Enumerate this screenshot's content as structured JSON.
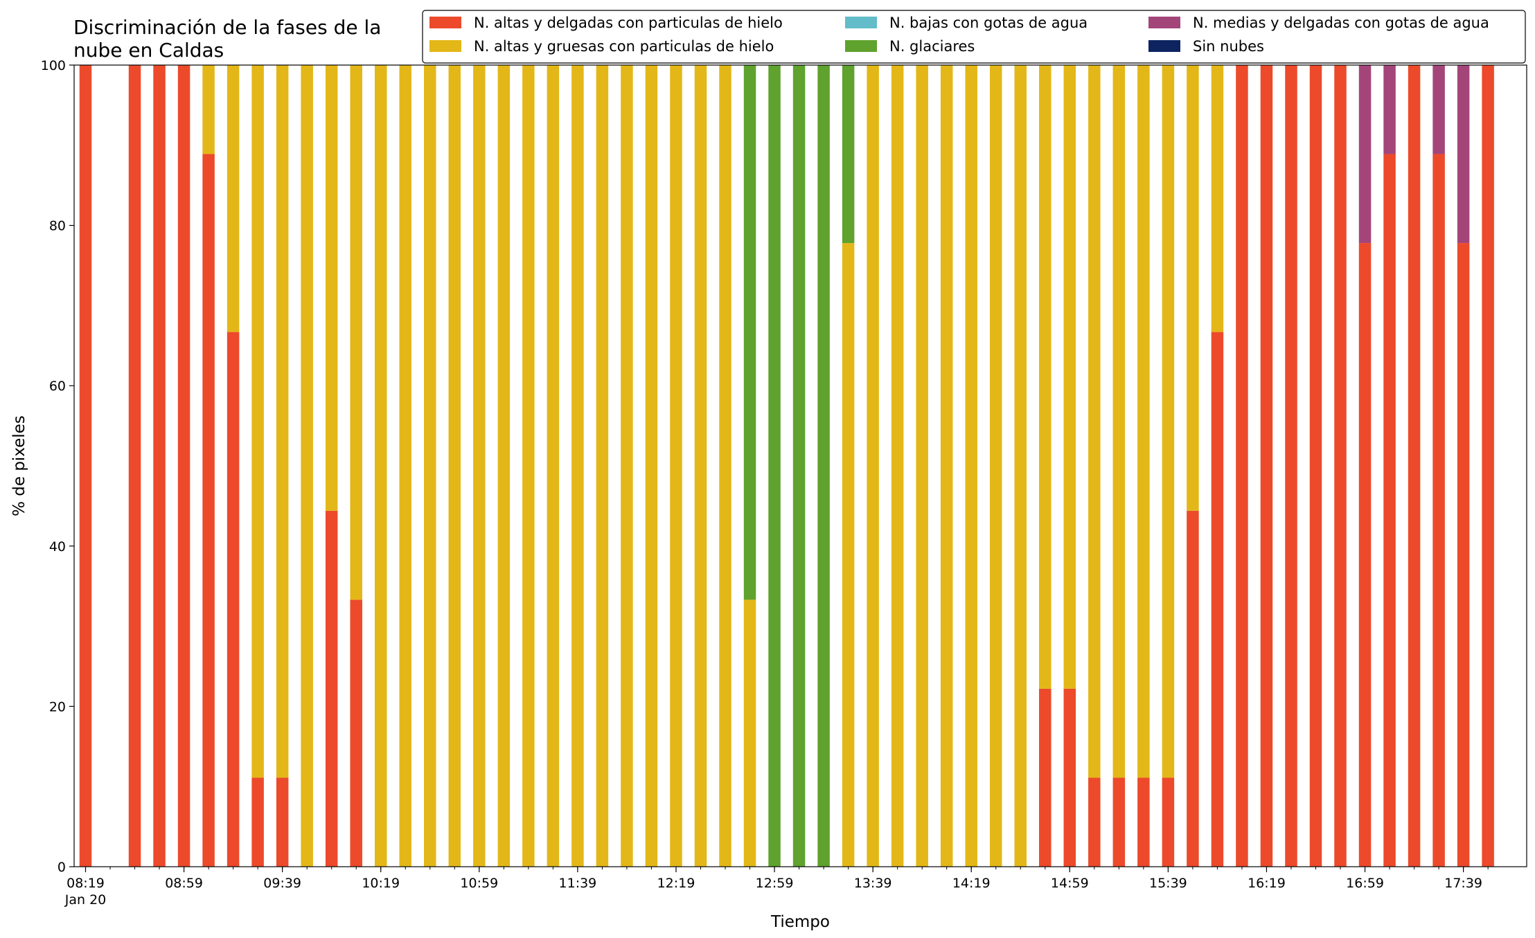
{
  "chart_data": {
    "type": "bar",
    "stacked": true,
    "title": "Discriminación de la fases de la\nnube en Caldas",
    "xlabel": "Tiempo",
    "ylabel": "% de pixeles",
    "ylim": [
      0,
      100
    ],
    "yticks": [
      0,
      20,
      40,
      60,
      80,
      100
    ],
    "grid": false,
    "legend_position": "top-right",
    "x_interval_minutes": 10,
    "x": [
      "08:19",
      "08:29",
      "08:39",
      "08:49",
      "08:59",
      "09:09",
      "09:19",
      "09:29",
      "09:39",
      "09:49",
      "09:59",
      "10:09",
      "10:19",
      "10:29",
      "10:39",
      "10:49",
      "10:59",
      "11:09",
      "11:19",
      "11:29",
      "11:39",
      "11:49",
      "11:59",
      "12:09",
      "12:19",
      "12:29",
      "12:39",
      "12:49",
      "12:59",
      "13:09",
      "13:19",
      "13:29",
      "13:39",
      "13:49",
      "13:59",
      "14:09",
      "14:19",
      "14:29",
      "14:39",
      "14:49",
      "14:59",
      "15:09",
      "15:19",
      "15:29",
      "15:39",
      "15:49",
      "15:59",
      "16:09",
      "16:19",
      "16:29",
      "16:39",
      "16:49",
      "16:59",
      "17:09",
      "17:19",
      "17:29",
      "17:39",
      "17:49"
    ],
    "x_tick_labels": [
      {
        "x": "08:19",
        "label": "08:19",
        "sublabel": "Jan 20"
      },
      {
        "x": "08:59",
        "label": "08:59"
      },
      {
        "x": "09:39",
        "label": "09:39"
      },
      {
        "x": "10:19",
        "label": "10:19"
      },
      {
        "x": "10:59",
        "label": "10:59"
      },
      {
        "x": "11:39",
        "label": "11:39"
      },
      {
        "x": "12:19",
        "label": "12:19"
      },
      {
        "x": "12:59",
        "label": "12:59"
      },
      {
        "x": "13:39",
        "label": "13:39"
      },
      {
        "x": "14:19",
        "label": "14:19"
      },
      {
        "x": "14:59",
        "label": "14:59"
      },
      {
        "x": "15:39",
        "label": "15:39"
      },
      {
        "x": "16:19",
        "label": "16:19"
      },
      {
        "x": "16:59",
        "label": "16:59"
      },
      {
        "x": "17:39",
        "label": "17:39"
      }
    ],
    "series": [
      {
        "name": "N. altas y delgadas con particulas de hielo",
        "color": "#ec4a2b",
        "values": [
          100,
          0,
          100,
          100,
          100,
          88.9,
          66.7,
          11.1,
          11.1,
          0,
          44.4,
          33.3,
          0,
          0,
          0,
          0,
          0,
          0,
          0,
          0,
          0,
          0,
          0,
          0,
          0,
          0,
          0,
          0,
          0,
          0,
          0,
          0,
          0,
          0,
          0,
          0,
          0,
          0,
          0,
          22.2,
          22.2,
          11.1,
          11.1,
          11.1,
          11.1,
          44.4,
          66.7,
          100,
          100,
          100,
          100,
          100,
          77.8,
          88.9,
          100,
          88.9,
          77.8,
          100
        ]
      },
      {
        "name": "N. altas y gruesas con particulas de hielo",
        "color": "#e3b718",
        "values": [
          0,
          0,
          0,
          0,
          0,
          11.1,
          33.3,
          88.9,
          88.9,
          100,
          55.6,
          66.7,
          100,
          100,
          100,
          100,
          100,
          100,
          100,
          100,
          100,
          100,
          100,
          100,
          100,
          100,
          100,
          33.3,
          0,
          0,
          0,
          77.8,
          100,
          100,
          100,
          100,
          100,
          100,
          100,
          77.8,
          77.8,
          88.9,
          88.9,
          88.9,
          88.9,
          55.6,
          33.3,
          0,
          0,
          0,
          0,
          0,
          0,
          0,
          0,
          0,
          0,
          0
        ]
      },
      {
        "name": "N. bajas con gotas de agua",
        "color": "#62bcc9",
        "values": [
          0,
          0,
          0,
          0,
          0,
          0,
          0,
          0,
          0,
          0,
          0,
          0,
          0,
          0,
          0,
          0,
          0,
          0,
          0,
          0,
          0,
          0,
          0,
          0,
          0,
          0,
          0,
          0,
          0,
          0,
          0,
          0,
          0,
          0,
          0,
          0,
          0,
          0,
          0,
          0,
          0,
          0,
          0,
          0,
          0,
          0,
          0,
          0,
          0,
          0,
          0,
          0,
          0,
          0,
          0,
          0,
          0,
          0
        ]
      },
      {
        "name": "N. glaciares",
        "color": "#5fa22e",
        "values": [
          0,
          0,
          0,
          0,
          0,
          0,
          0,
          0,
          0,
          0,
          0,
          0,
          0,
          0,
          0,
          0,
          0,
          0,
          0,
          0,
          0,
          0,
          0,
          0,
          0,
          0,
          0,
          66.7,
          100,
          100,
          100,
          22.2,
          0,
          0,
          0,
          0,
          0,
          0,
          0,
          0,
          0,
          0,
          0,
          0,
          0,
          0,
          0,
          0,
          0,
          0,
          0,
          0,
          0,
          0,
          0,
          0,
          0,
          0
        ]
      },
      {
        "name": "N. medias y delgadas con gotas de agua",
        "color": "#a4457a",
        "values": [
          0,
          0,
          0,
          0,
          0,
          0,
          0,
          0,
          0,
          0,
          0,
          0,
          0,
          0,
          0,
          0,
          0,
          0,
          0,
          0,
          0,
          0,
          0,
          0,
          0,
          0,
          0,
          0,
          0,
          0,
          0,
          0,
          0,
          0,
          0,
          0,
          0,
          0,
          0,
          0,
          0,
          0,
          0,
          0,
          0,
          0,
          0,
          0,
          0,
          0,
          0,
          0,
          22.2,
          11.1,
          0,
          11.1,
          22.2,
          0
        ]
      },
      {
        "name": "Sin nubes",
        "color": "#0d2461",
        "values": [
          0,
          0,
          0,
          0,
          0,
          0,
          0,
          0,
          0,
          0,
          0,
          0,
          0,
          0,
          0,
          0,
          0,
          0,
          0,
          0,
          0,
          0,
          0,
          0,
          0,
          0,
          0,
          0,
          0,
          0,
          0,
          0,
          0,
          0,
          0,
          0,
          0,
          0,
          0,
          0,
          0,
          0,
          0,
          0,
          0,
          0,
          0,
          0,
          0,
          0,
          0,
          0,
          0,
          0,
          0,
          0,
          0,
          0
        ]
      }
    ]
  }
}
